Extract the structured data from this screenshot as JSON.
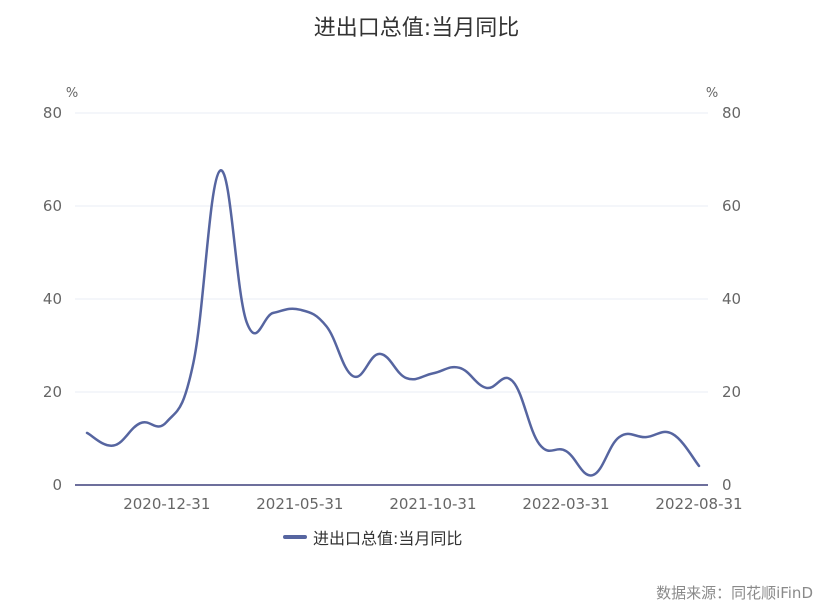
{
  "title": "进出口总值:当月同比",
  "source": "数据来源：同花顺iFinD",
  "colors": {
    "series": "#5665a0",
    "grid": "#e8ecf5",
    "axis": "#6d6f9c"
  },
  "chart_data": {
    "type": "line",
    "title": "进出口总值:当月同比",
    "y_unit_left": "%",
    "y_unit_right": "%",
    "ylim": [
      0,
      80
    ],
    "yticks": [
      0,
      20,
      40,
      60,
      80
    ],
    "xtick_labels": [
      "2020-12-31",
      "2021-05-31",
      "2021-10-31",
      "2022-03-31",
      "2022-08-31"
    ],
    "grid": true,
    "legend": "bottom-center",
    "series": [
      {
        "name": "进出口总值:当月同比",
        "x": [
          "2020-09-30",
          "2020-10-31",
          "2020-11-30",
          "2020-12-31",
          "2021-01-31",
          "2021-02-28",
          "2021-03-31",
          "2021-04-30",
          "2021-05-31",
          "2021-06-30",
          "2021-07-31",
          "2021-08-31",
          "2021-09-30",
          "2021-10-31",
          "2021-11-30",
          "2021-12-31",
          "2022-01-31",
          "2022-02-28",
          "2022-03-31",
          "2022-04-30",
          "2022-05-31",
          "2022-06-30",
          "2022-07-31",
          "2022-08-31"
        ],
        "values": [
          11.2,
          8.5,
          13.3,
          13.6,
          26.3,
          67.6,
          35.0,
          37.0,
          37.7,
          34.1,
          23.4,
          28.2,
          23.0,
          24.0,
          25.2,
          20.9,
          22.3,
          8.8,
          7.3,
          2.1,
          10.3,
          10.3,
          11.0,
          4.1
        ]
      }
    ]
  }
}
